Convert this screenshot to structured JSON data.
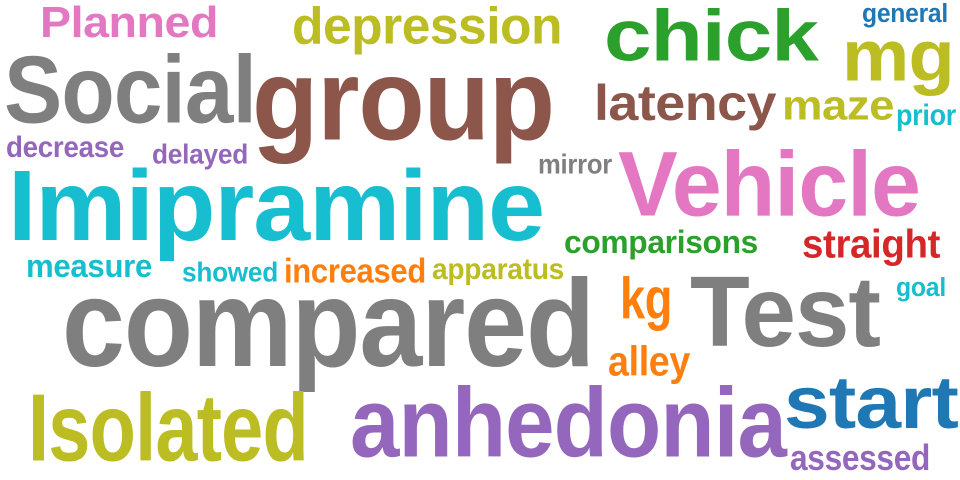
{
  "words": [
    {
      "text": "Planned",
      "color": "#e377c2"
    },
    {
      "text": "depression",
      "color": "#bcbd22"
    },
    {
      "text": "chick",
      "color": "#2ca02c"
    },
    {
      "text": "general",
      "color": "#1f77b4"
    },
    {
      "text": "mg",
      "color": "#bcbd22"
    },
    {
      "text": "Social",
      "color": "#7f7f7f"
    },
    {
      "text": "group",
      "color": "#8c564b"
    },
    {
      "text": "latency",
      "color": "#8c564b"
    },
    {
      "text": "maze",
      "color": "#bcbd22"
    },
    {
      "text": "prior",
      "color": "#17becf"
    },
    {
      "text": "decrease",
      "color": "#9467bd"
    },
    {
      "text": "delayed",
      "color": "#9467bd"
    },
    {
      "text": "mirror",
      "color": "#7f7f7f"
    },
    {
      "text": "Vehicle",
      "color": "#e377c2"
    },
    {
      "text": "Imipramine",
      "color": "#17becf"
    },
    {
      "text": "comparisons",
      "color": "#2ca02c"
    },
    {
      "text": "straight",
      "color": "#d62728"
    },
    {
      "text": "measure",
      "color": "#17becf"
    },
    {
      "text": "showed",
      "color": "#17becf"
    },
    {
      "text": "increased",
      "color": "#ff7f0e"
    },
    {
      "text": "apparatus",
      "color": "#bcbd22"
    },
    {
      "text": "kg",
      "color": "#ff7f0e"
    },
    {
      "text": "goal",
      "color": "#17becf"
    },
    {
      "text": "compared",
      "color": "#7f7f7f"
    },
    {
      "text": "Test",
      "color": "#7f7f7f"
    },
    {
      "text": "alley",
      "color": "#ff7f0e"
    },
    {
      "text": "Isolated",
      "color": "#bcbd22"
    },
    {
      "text": "anhedonia",
      "color": "#9467bd"
    },
    {
      "text": "start",
      "color": "#1f77b4"
    },
    {
      "text": "assessed",
      "color": "#9467bd"
    }
  ]
}
